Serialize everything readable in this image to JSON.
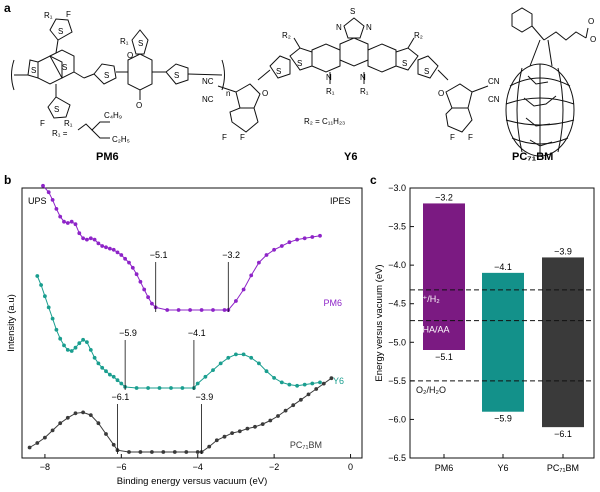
{
  "panels": {
    "a": "a",
    "b": "b",
    "c": "c"
  },
  "molecules": {
    "pm6": {
      "name": "PM6",
      "r1_def": "R₁ =",
      "r1_branch_top": "C₄H₉",
      "r1_branch_bottom": "C₂H₅",
      "repeat": "n",
      "atoms": {
        "S": "S",
        "F": "F",
        "O": "O",
        "R1": "R₁"
      }
    },
    "y6": {
      "name": "Y6",
      "r2_def": "R₂ = C₁₁H₂₃",
      "atoms": {
        "S": "S",
        "N": "N",
        "F": "F",
        "O": "O",
        "NC": "NC",
        "CN": "CN",
        "R1": "R₁",
        "R2": "R₂"
      }
    },
    "pc71bm": {
      "name": "PC₇₁BM",
      "atoms": {
        "O": "O"
      }
    }
  },
  "colors": {
    "pm6": "#8e24c8",
    "y6": "#1a9e8f",
    "pc71bm": "#3a3a3a",
    "pm6_bar": "#7b1a82",
    "y6_bar": "#13918a",
    "pc71bm_bar": "#3a3a3a"
  },
  "chart_data": [
    {
      "panel": "b",
      "type": "scatter",
      "title": "",
      "xlabel": "Binding energy versus vacuum (eV)",
      "ylabel": "Intensity (a.u)",
      "xlim": [
        -8.6,
        0.3
      ],
      "xticks": [
        -8,
        -6,
        -4,
        -2,
        0
      ],
      "xtick_labels": [
        "−8",
        "−6",
        "−4",
        "−2",
        "0"
      ],
      "corner_labels": {
        "left": "UPS",
        "right": "IPES"
      },
      "series": [
        {
          "name": "PM6",
          "legend": "PM6",
          "onset_ups": -5.1,
          "onset_ipes": -3.2,
          "onset_labels": [
            "−5.1",
            "−3.2"
          ],
          "x": [
            -8.05,
            -7.9,
            -7.8,
            -7.7,
            -7.6,
            -7.5,
            -7.4,
            -7.3,
            -7.2,
            -7.1,
            -7.0,
            -6.9,
            -6.8,
            -6.7,
            -6.6,
            -6.5,
            -6.4,
            -6.3,
            -6.2,
            -6.1,
            -6.0,
            -5.9,
            -5.8,
            -5.7,
            -5.6,
            -5.5,
            -5.4,
            -5.3,
            -5.2,
            -5.1,
            -4.8,
            -4.5,
            -4.2,
            -3.9,
            -3.6,
            -3.3,
            -3.2,
            -3.0,
            -2.8,
            -2.6,
            -2.4,
            -2.2,
            -2.0,
            -1.8,
            -1.6,
            -1.4,
            -1.2,
            -1.0,
            -0.8
          ],
          "y": [
            0.97,
            0.92,
            0.86,
            0.79,
            0.73,
            0.69,
            0.68,
            0.69,
            0.67,
            0.6,
            0.56,
            0.55,
            0.56,
            0.55,
            0.52,
            0.5,
            0.49,
            0.48,
            0.47,
            0.45,
            0.43,
            0.4,
            0.37,
            0.33,
            0.28,
            0.22,
            0.16,
            0.1,
            0.05,
            0.02,
            0.0,
            0.0,
            0.0,
            0.0,
            0.0,
            0.0,
            0.0,
            0.07,
            0.16,
            0.27,
            0.37,
            0.43,
            0.47,
            0.5,
            0.53,
            0.55,
            0.56,
            0.57,
            0.58
          ]
        },
        {
          "name": "Y6",
          "legend": "Y6",
          "onset_ups": -5.9,
          "onset_ipes": -4.1,
          "onset_labels": [
            "−5.9",
            "−4.1"
          ],
          "x": [
            -8.2,
            -8.1,
            -8.0,
            -7.9,
            -7.8,
            -7.7,
            -7.6,
            -7.5,
            -7.4,
            -7.3,
            -7.2,
            -7.1,
            -7.0,
            -6.9,
            -6.8,
            -6.7,
            -6.6,
            -6.5,
            -6.4,
            -6.3,
            -6.2,
            -6.1,
            -6.0,
            -5.9,
            -5.6,
            -5.3,
            -5.0,
            -4.7,
            -4.4,
            -4.1,
            -4.0,
            -3.8,
            -3.6,
            -3.4,
            -3.2,
            -3.0,
            -2.8,
            -2.6,
            -2.4,
            -2.2,
            -2.0,
            -1.8,
            -1.6,
            -1.4,
            -1.2,
            -1.0,
            -0.8
          ],
          "y": [
            1.0,
            0.92,
            0.82,
            0.72,
            0.62,
            0.52,
            0.44,
            0.38,
            0.34,
            0.33,
            0.36,
            0.4,
            0.43,
            0.41,
            0.34,
            0.27,
            0.22,
            0.18,
            0.15,
            0.12,
            0.1,
            0.07,
            0.04,
            0.01,
            0.0,
            0.0,
            0.0,
            0.0,
            0.0,
            0.0,
            0.04,
            0.1,
            0.16,
            0.22,
            0.27,
            0.3,
            0.3,
            0.27,
            0.22,
            0.15,
            0.09,
            0.05,
            0.03,
            0.02,
            0.03,
            0.04,
            0.05
          ]
        },
        {
          "name": "PC71BM",
          "legend": "PC₇₁BM",
          "onset_ups": -6.1,
          "onset_ipes": -3.9,
          "onset_labels": [
            "−6.1",
            "−3.9"
          ],
          "x": [
            -8.4,
            -8.2,
            -8.0,
            -7.8,
            -7.6,
            -7.4,
            -7.2,
            -7.0,
            -6.8,
            -6.6,
            -6.4,
            -6.2,
            -6.1,
            -5.8,
            -5.5,
            -5.2,
            -4.9,
            -4.6,
            -4.3,
            -4.0,
            -3.9,
            -3.7,
            -3.5,
            -3.3,
            -3.1,
            -2.9,
            -2.7,
            -2.5,
            -2.3,
            -2.1,
            -1.9,
            -1.7,
            -1.5,
            -1.3,
            -1.1,
            -0.9,
            -0.7,
            -0.5
          ],
          "y": [
            0.05,
            0.1,
            0.16,
            0.24,
            0.32,
            0.38,
            0.43,
            0.44,
            0.41,
            0.32,
            0.2,
            0.08,
            0.02,
            0.0,
            0.0,
            0.0,
            0.0,
            0.0,
            0.0,
            0.0,
            0.0,
            0.06,
            0.13,
            0.17,
            0.21,
            0.23,
            0.26,
            0.28,
            0.31,
            0.35,
            0.4,
            0.46,
            0.52,
            0.58,
            0.64,
            0.7,
            0.76,
            0.82
          ]
        }
      ]
    },
    {
      "panel": "c",
      "type": "bar",
      "title": "",
      "xlabel": "",
      "ylabel": "Energy versus vacuum (eV)",
      "ylim": [
        -6.5,
        -3.0
      ],
      "yticks": [
        -3.0,
        -3.5,
        -4.0,
        -4.5,
        -5.0,
        -5.5,
        -6.0,
        -6.5
      ],
      "ytick_labels": [
        "−3.0",
        "−3.5",
        "−4.0",
        "−4.5",
        "−5.0",
        "−5.5",
        "−6.0",
        "−6.5"
      ],
      "categories": [
        "PM6",
        "Y6",
        "PC₇₁BM"
      ],
      "lumo": [
        -3.2,
        -4.1,
        -3.9
      ],
      "homo": [
        -5.1,
        -5.9,
        -6.1
      ],
      "lumo_labels": [
        "−3.2",
        "−4.1",
        "−3.9"
      ],
      "homo_labels": [
        "−5.1",
        "−5.9",
        "−6.1"
      ],
      "reference_lines": [
        {
          "label": "H⁺/H₂",
          "value": -4.32
        },
        {
          "label": "DHA/AA",
          "value": -4.72
        },
        {
          "label": "O₂/H₂O",
          "value": -5.5
        }
      ]
    }
  ]
}
